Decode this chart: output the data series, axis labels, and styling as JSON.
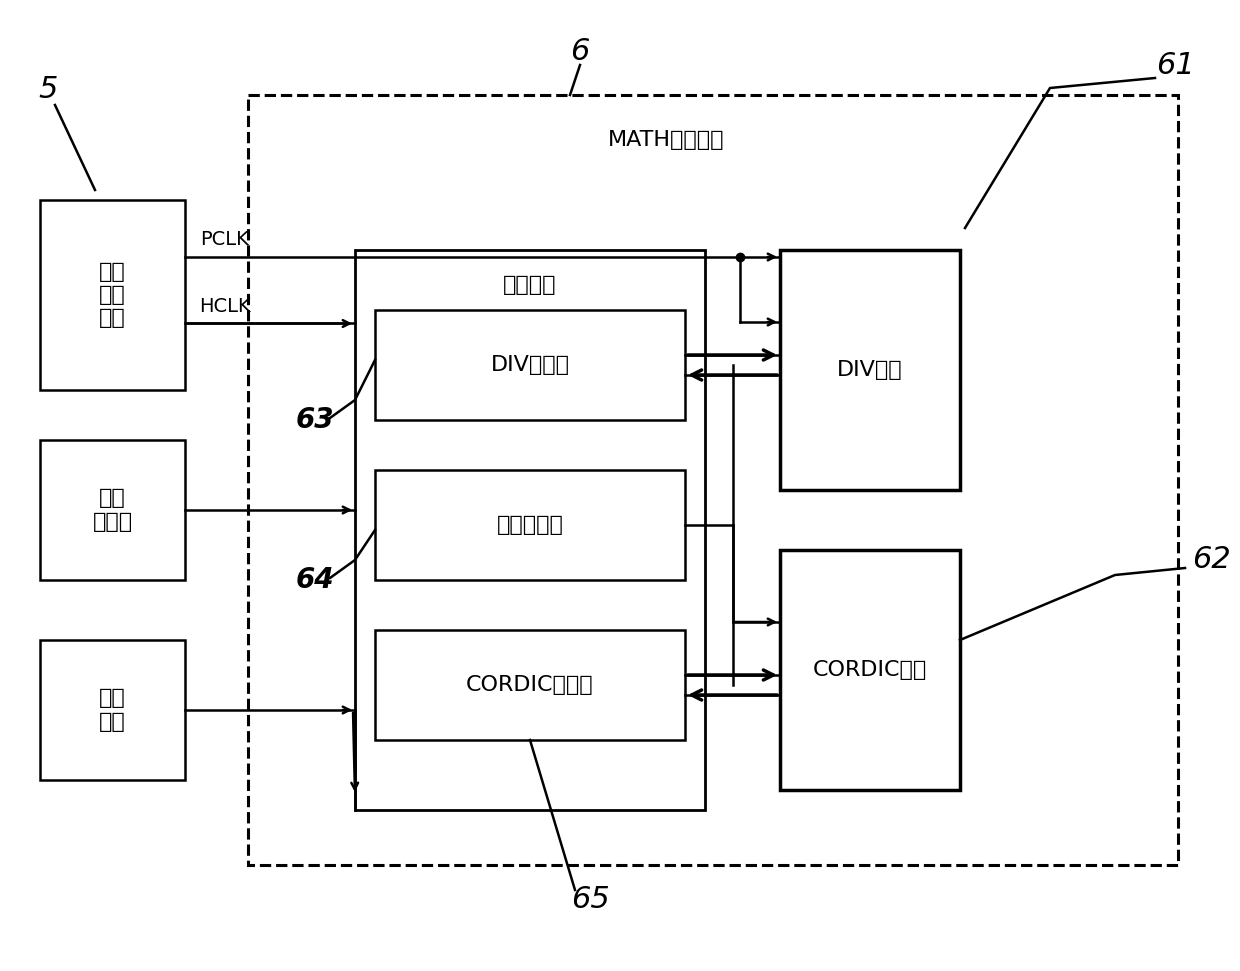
{
  "bg_color": "#ffffff",
  "label_5": "5",
  "label_6": "6",
  "label_61": "61",
  "label_62": "62",
  "label_63": "63",
  "label_64": "64",
  "label_65": "65",
  "box_sysclk_label": "系统\n时钟\n控制",
  "box_addr_label": "地址\n译码器",
  "box_int_label": "中断\n控制",
  "box_interface_label": "接口模块",
  "box_div_reg_label": "DIV寄存器",
  "box_global_reg_label": "全局寄存器",
  "box_cordic_reg_label": "CORDIC寄存器",
  "box_div_core_label": "DIV内核",
  "box_cordic_core_label": "CORDIC内核",
  "math_label": "MATH协处理器",
  "pclk_label": "PCLK",
  "hclk_label": "HCLK"
}
